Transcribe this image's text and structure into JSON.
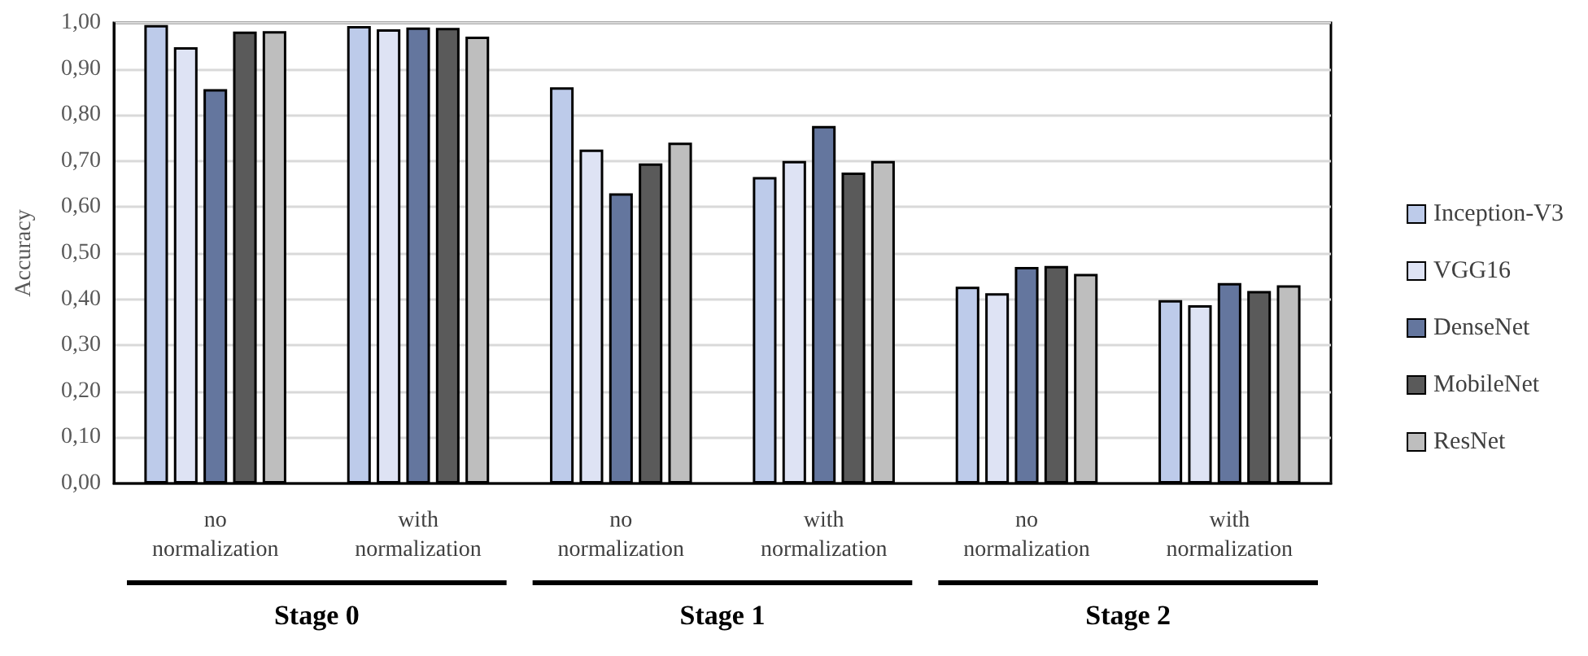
{
  "chart_data": {
    "type": "bar",
    "ylabel": "Accuracy",
    "categories": [
      "no\nnormalization",
      "with\nnormalization",
      "no\nnormalization",
      "with\nnormalization",
      "no\nnormalization",
      "with\nnormalization"
    ],
    "series": [
      {
        "name": "Inception-V3",
        "color": "#bdcbea",
        "values": [
          0.995,
          0.993,
          0.86,
          0.665,
          0.427,
          0.398
        ]
      },
      {
        "name": "VGG16",
        "color": "#dee3f4",
        "values": [
          0.947,
          0.986,
          0.725,
          0.7,
          0.413,
          0.387
        ]
      },
      {
        "name": "DenseNet",
        "color": "#64769e",
        "values": [
          0.856,
          0.99,
          0.63,
          0.776,
          0.47,
          0.435
        ]
      },
      {
        "name": "MobileNet",
        "color": "#5a5a5a",
        "values": [
          0.981,
          0.989,
          0.695,
          0.675,
          0.472,
          0.418
        ]
      },
      {
        "name": "ResNet",
        "color": "#bebebe",
        "values": [
          0.982,
          0.97,
          0.74,
          0.7,
          0.455,
          0.43
        ]
      }
    ],
    "ylim": [
      0,
      1
    ],
    "yticks": [
      {
        "value": 0,
        "label": "0,00"
      },
      {
        "value": 0.1,
        "label": "0,10"
      },
      {
        "value": 0.2,
        "label": "0,20"
      },
      {
        "value": 0.3,
        "label": "0,30"
      },
      {
        "value": 0.4,
        "label": "0,40"
      },
      {
        "value": 0.5,
        "label": "0,50"
      },
      {
        "value": 0.6,
        "label": "0,60"
      },
      {
        "value": 0.7,
        "label": "0,70"
      },
      {
        "value": 0.8,
        "label": "0,80"
      },
      {
        "value": 0.9,
        "label": "0,90"
      },
      {
        "value": 1,
        "label": "1,00"
      }
    ],
    "annotations": [
      "Stage 0",
      "Stage 1",
      "Stage 2"
    ],
    "grid": "y",
    "legend": "right"
  }
}
